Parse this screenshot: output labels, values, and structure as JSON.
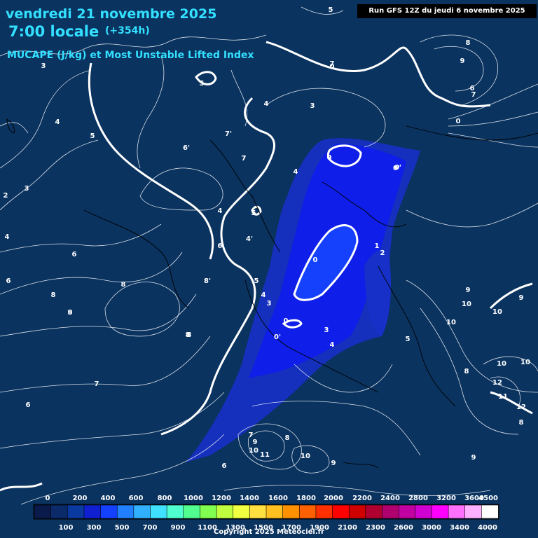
{
  "header": {
    "date": "vendredi 21 novembre 2025",
    "time": "7:00 locale",
    "offset": "(+354h)",
    "parameter": "MUCAPE (J/kg) et Most Unstable Lifted Index"
  },
  "run_info": "Run GFS 12Z du jeudi 6 novembre 2025",
  "copyright": "Copyright 2025 Meteociel.fr",
  "colors": {
    "background": "#0a3360",
    "header_text": "#33e0ff",
    "contour": "#ffffff"
  },
  "legend": {
    "top_labels": [
      "0",
      "200",
      "400",
      "600",
      "800",
      "1000",
      "1200",
      "1400",
      "1600",
      "1800",
      "2000",
      "2200",
      "2400",
      "2800",
      "3200",
      "3600",
      "4500"
    ],
    "bottom_labels": [
      "100",
      "300",
      "500",
      "700",
      "900",
      "1100",
      "1300",
      "1500",
      "1700",
      "1900",
      "2100",
      "2300",
      "2600",
      "3000",
      "3400",
      "4000"
    ],
    "colors": [
      "#0a1a4a",
      "#0a2a6a",
      "#0a3aa0",
      "#1020d0",
      "#1440ff",
      "#2080ff",
      "#30b0ff",
      "#40e0ff",
      "#50ffd0",
      "#50ff90",
      "#80ff50",
      "#c0ff40",
      "#f0ff40",
      "#ffe040",
      "#ffc020",
      "#ff9000",
      "#ff6000",
      "#ff3000",
      "#ff0000",
      "#d00000",
      "#b00030",
      "#b00070",
      "#c000a0",
      "#d000d0",
      "#ff00ff",
      "#ff70ff",
      "#ffb0ff",
      "#ffffff"
    ]
  },
  "contour_labels": [
    {
      "t": "5"
    },
    {
      "t": "3"
    },
    {
      "t": "4"
    },
    {
      "t": "5"
    },
    {
      "t": "5"
    },
    {
      "t": "6'"
    },
    {
      "t": "7"
    },
    {
      "t": "2"
    },
    {
      "t": "3"
    },
    {
      "t": "4"
    },
    {
      "t": "6"
    },
    {
      "t": "6"
    },
    {
      "t": "8"
    },
    {
      "t": "8"
    },
    {
      "t": "8"
    },
    {
      "t": "8"
    },
    {
      "t": "7"
    },
    {
      "t": "6"
    },
    {
      "t": "0"
    },
    {
      "t": "4"
    },
    {
      "t": "3"
    },
    {
      "t": "7'"
    },
    {
      "t": "7"
    },
    {
      "t": "7"
    },
    {
      "t": "4"
    },
    {
      "t": "4"
    },
    {
      "t": "5"
    },
    {
      "t": "4'"
    },
    {
      "t": "6"
    },
    {
      "t": "8'"
    },
    {
      "t": "5"
    },
    {
      "t": "4"
    },
    {
      "t": "3"
    },
    {
      "t": "0"
    },
    {
      "t": "0'"
    },
    {
      "t": "0"
    },
    {
      "t": "0"
    },
    {
      "t": "0'"
    },
    {
      "t": "3"
    },
    {
      "t": "4"
    },
    {
      "t": "2"
    },
    {
      "t": "1"
    },
    {
      "t": "0'"
    },
    {
      "t": "5"
    },
    {
      "t": "8"
    },
    {
      "t": "9"
    },
    {
      "t": "7"
    },
    {
      "t": "6"
    },
    {
      "t": "0"
    },
    {
      "t": "9"
    },
    {
      "t": "10"
    },
    {
      "t": "10"
    },
    {
      "t": "10"
    },
    {
      "t": "9"
    },
    {
      "t": "10"
    },
    {
      "t": "10"
    },
    {
      "t": "12"
    },
    {
      "t": "11"
    },
    {
      "t": "12"
    },
    {
      "t": "8"
    },
    {
      "t": "8"
    },
    {
      "t": "9"
    },
    {
      "t": "7"
    },
    {
      "t": "9"
    },
    {
      "t": "10"
    },
    {
      "t": "11"
    },
    {
      "t": "8"
    },
    {
      "t": "10"
    },
    {
      "t": "9"
    },
    {
      "t": "6"
    },
    {
      "t": "8"
    },
    {
      "t": "9"
    }
  ]
}
